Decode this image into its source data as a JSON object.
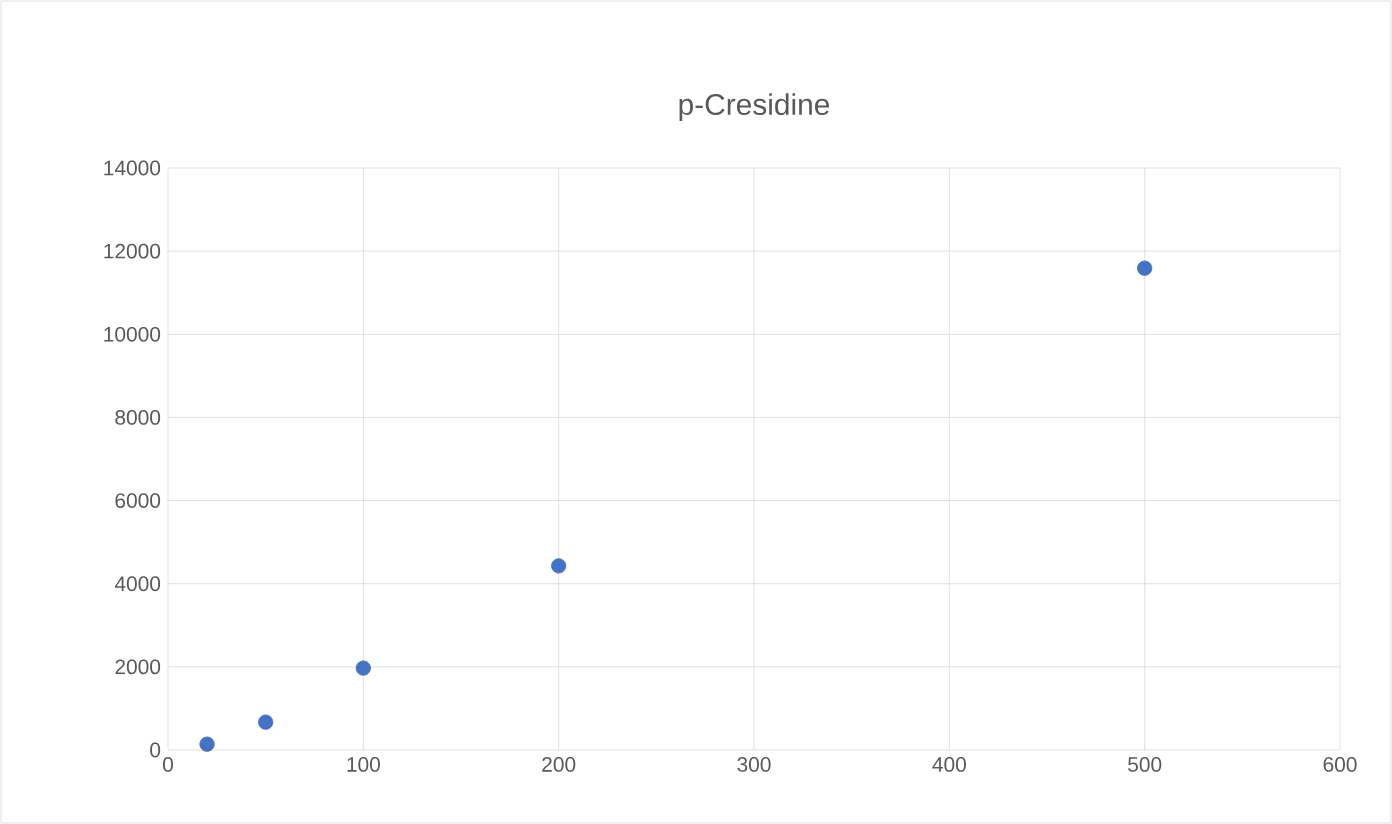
{
  "chart_data": {
    "type": "scatter",
    "title": "p-Cresidine",
    "x": [
      20,
      50,
      100,
      200,
      500
    ],
    "series": [
      {
        "color": "#4472c4",
        "values": [
          140,
          670,
          1970,
          4430,
          11590
        ]
      }
    ],
    "xlim": [
      0,
      600
    ],
    "xticks": [
      0,
      100,
      200,
      300,
      400,
      500,
      600
    ],
    "ylim": [
      0,
      14000
    ],
    "yticks": [
      0,
      2000,
      4000,
      6000,
      8000,
      10000,
      12000,
      14000
    ],
    "grid": true,
    "marker": "circle"
  }
}
